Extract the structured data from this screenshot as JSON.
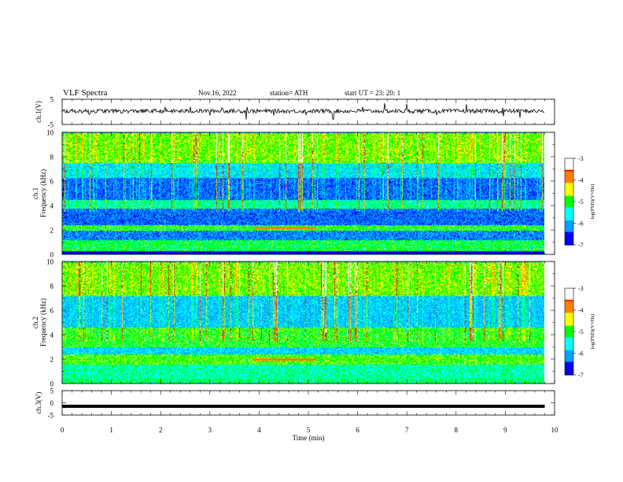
{
  "header": {
    "title": "VLF  Spectra",
    "date": "Nov.16, 2022",
    "station": "station= ATH",
    "start_ut": "start  UT  =    23: 20: 1"
  },
  "colors": {
    "colormap": [
      "#000040",
      "#0000ff",
      "#00a0ff",
      "#00ffff",
      "#00ff00",
      "#ffff00",
      "#ff8000",
      "#ff0000",
      "#ffffff"
    ],
    "trace": "#000000"
  },
  "chart_data": [
    {
      "type": "line",
      "name": "ch1-waveform",
      "ylabel": "ch.1(V)",
      "ylim": [
        -5,
        5
      ],
      "yticks": [
        "5",
        "-5"
      ],
      "xlim": [
        0,
        10
      ],
      "x_extent": [
        0,
        9.8
      ],
      "baseline": 0.3,
      "spikes_at": [
        0.55,
        1.2,
        1.58,
        2.1,
        2.6,
        3.0,
        3.25,
        3.75,
        4.3,
        4.95,
        5.5,
        6.1,
        6.55,
        7.0,
        7.6,
        8.2,
        8.95,
        9.3
      ]
    },
    {
      "type": "heatmap",
      "name": "ch1-spectrogram",
      "ylabel": "ch.1\nFrequency  (kHz)",
      "xlim": [
        0,
        10
      ],
      "x_extent": [
        0,
        9.8
      ],
      "ylim": [
        0,
        10
      ],
      "yticks": [
        "0",
        "2",
        "4",
        "6",
        "8",
        "10"
      ],
      "colorbar": {
        "label": "log(PSD)(V²/Hz)",
        "range": [
          -7,
          -3
        ],
        "ticks": [
          "-3",
          "-4",
          "-5",
          "-6",
          "-7"
        ]
      },
      "bands_khz": [
        {
          "from": 0,
          "to": 0.3,
          "level": -7.0
        },
        {
          "from": 0.3,
          "to": 1.2,
          "level": -5.1
        },
        {
          "from": 1.2,
          "to": 2.0,
          "level": -6.2
        },
        {
          "from": 2.0,
          "to": 2.4,
          "level": -5.0
        },
        {
          "from": 2.4,
          "to": 3.8,
          "level": -6.3
        },
        {
          "from": 3.8,
          "to": 4.5,
          "level": -5.4
        },
        {
          "from": 4.5,
          "to": 6.3,
          "level": -6.3
        },
        {
          "from": 6.3,
          "to": 7.5,
          "level": -5.7
        },
        {
          "from": 7.5,
          "to": 10,
          "level": -4.8
        }
      ],
      "narrowband_khz": 2.2,
      "narrowband_time_min": [
        3.9,
        5.15
      ]
    },
    {
      "type": "heatmap",
      "name": "ch2-spectrogram",
      "ylabel": "ch.2\nFrequency  (kHz)",
      "xlim": [
        0,
        10
      ],
      "x_extent": [
        0,
        9.8
      ],
      "ylim": [
        0,
        10
      ],
      "yticks": [
        "0",
        "2",
        "4",
        "6",
        "8",
        "10"
      ],
      "colorbar": {
        "label": "log(PSD)(V²/Hz)",
        "range": [
          -7,
          -3
        ],
        "ticks": [
          "-3",
          "-4",
          "-5",
          "-6",
          "-7"
        ]
      },
      "bands_khz": [
        {
          "from": 0,
          "to": 0.4,
          "level": -5.2
        },
        {
          "from": 0.4,
          "to": 1.6,
          "level": -5.4
        },
        {
          "from": 1.6,
          "to": 2.4,
          "level": -4.9
        },
        {
          "from": 2.4,
          "to": 3.0,
          "level": -5.8
        },
        {
          "from": 3.0,
          "to": 4.6,
          "level": -5.0
        },
        {
          "from": 4.6,
          "to": 7.2,
          "level": -5.9
        },
        {
          "from": 7.2,
          "to": 10,
          "level": -4.8
        }
      ],
      "narrowband_khz": 2.0,
      "narrowband_time_min": [
        3.9,
        5.15
      ]
    },
    {
      "type": "line",
      "name": "ch3-waveform",
      "ylabel": "ch.3(V)",
      "ylim": [
        -5,
        5
      ],
      "yticks": [
        "5",
        "0",
        "-5"
      ],
      "xlim": [
        0,
        10
      ],
      "x_extent": [
        0,
        9.8
      ],
      "baseline": -1.4,
      "xlabel": "Time  (min)",
      "xticks": [
        "0",
        "1",
        "2",
        "3",
        "4",
        "5",
        "6",
        "7",
        "8",
        "9",
        "10"
      ]
    }
  ]
}
